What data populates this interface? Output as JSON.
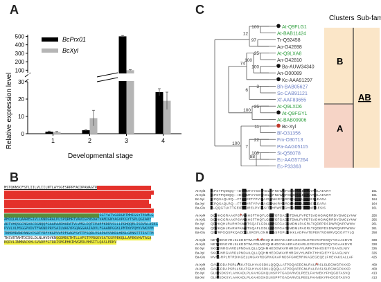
{
  "panels": {
    "a": "A",
    "b": "B",
    "c": "C",
    "d": "D"
  },
  "chart_data": {
    "type": "bar",
    "categories": [
      "1",
      "2",
      "3",
      "4"
    ],
    "series": [
      {
        "name": "BcPrx01",
        "values": [
          1.2,
          2.0,
          500,
          24
        ],
        "errors": [
          0.3,
          0.4,
          10,
          2
        ]
      },
      {
        "name": "BcXyl",
        "values": [
          1.0,
          9.0,
          100,
          19
        ],
        "errors": [
          0.3,
          4.5,
          6,
          5
        ]
      }
    ],
    "xlabel": "Developmental stage",
    "ylabel": "Relative expression level",
    "axis_break": [
      30,
      70
    ],
    "y_ticks_lower": [
      0,
      10,
      20,
      30
    ],
    "y_ticks_upper": [
      100,
      200,
      300,
      400,
      500
    ],
    "legend_position": "top-right",
    "colors": {
      "BcPrx01": "#000000",
      "BcXyl": "#b5b5b5"
    }
  },
  "tree": {
    "headers": {
      "clusters": "Clusters",
      "subfamilies": "Sub-families"
    },
    "cluster_b": "B",
    "cluster_a": "A",
    "subfamily": "AB",
    "leaves": [
      {
        "label": "At-Q9FLG1",
        "color": "#2e9e3e",
        "marker": "black-dot"
      },
      {
        "label": "At-BAB11424",
        "color": "#2e9e3e"
      },
      {
        "label": "Tr-Q92458",
        "color": "#333333"
      },
      {
        "label": "Ao-O42698",
        "color": "#333333"
      },
      {
        "label": "At-Q9LXA8",
        "color": "#2e9e3e"
      },
      {
        "label": "An-O42810",
        "color": "#333333"
      },
      {
        "label": "Ba-AUW34340",
        "color": "#333333",
        "marker": "black-dot"
      },
      {
        "label": "An-O00089",
        "color": "#333333"
      },
      {
        "label": "Kc-AAA91297",
        "color": "#333333",
        "marker": "black-dot"
      },
      {
        "label": "Bh-BAB05627",
        "color": "#6b7fc4"
      },
      {
        "label": "Sc-CAB91121",
        "color": "#6b7fc4"
      },
      {
        "label": "Xf-AAF83655",
        "color": "#6b7fc4"
      },
      {
        "label": "At-Q9LXD6",
        "color": "#2e9e3e"
      },
      {
        "label": "At-Q9FGY1",
        "color": "#2e9e3e",
        "marker": "black-dot"
      },
      {
        "label": "At-BAB09906",
        "color": "#2e9e3e"
      },
      {
        "label": "Bc-Xyl",
        "color": "#333333",
        "marker": "red-dot"
      },
      {
        "label": "Bf-O31356",
        "color": "#6b7fc4"
      },
      {
        "label": "Fm-O30713",
        "color": "#6b7fc4"
      },
      {
        "label": "Pa-AAG05115",
        "color": "#6b7fc4"
      },
      {
        "label": "St-Q56078",
        "color": "#6b7fc4"
      },
      {
        "label": "Ec-AAG57264",
        "color": "#6b7fc4"
      },
      {
        "label": "Ec-P33363",
        "color": "#6b7fc4"
      }
    ],
    "bootstraps": [
      "100",
      "97",
      "12",
      "25",
      "100",
      "100",
      "74",
      "3",
      "6",
      "25",
      "100",
      "11",
      "22",
      "100",
      "7",
      "88",
      "100"
    ]
  },
  "sequence": {
    "first_line": "MSTQKNSCFSTLIILVLIILNTLAYSGESRPPFACDPANAGTR",
    "lines": [
      "MSTQKNSCFSTLIILVLIILNTLAYSGESRPPFACDPANAGTRSFSFCDTRLSLRPRVDAALLSLSLS",
      "IEEKVGNLVNNAAGVPRLGIPKYEWWSEALHGVSNVGPGTHFSSLVPGATSFPQPILTAASFNGSLFNT",
      "IGRVVSDEARAMYNGGMAGLTYWSPNVNIFRDPRWGRGQETPGEDPLVISKYAVSYVKGLQGDTDKGH",
      "GHRRLRVVVNGKHFGGGSQADGGATLTLLFWHDGSEGHAGAYGGNSLIYQGRPQKPLSGRSEDPEKR",
      "SGNKVGWKGTEQVSEDTVNEYTERAFIAHTTVDCRGATERKYGMRQLGDPVSRSERFIGHRNVANAVP",
      "SDEPDHRSFCVCMYRHLPQWRNDPGVPNLPDRPTEKPLSVTEGVKVNDVQLKYNLFRGFVVSDCDSAVS",
      "DFGASLEAIAGFSGTHAGSCWTSTLVPEALKAGDLDLVGTTASFSGTYATVGRRGETMHIGSYTEAMLG",
      "AHQQLALQAAREGIVLLKNDGRALPLSPQRHRTVAVIGPNSDATVAMIGNYAGVPCGYTSPLQGIARY",
      "ARTVHQSGCNGVACRGNQQFGAAEAARHADATVLVMGLDQTIEAEFKDRVSLLLPGHQQELISRVALASKG",
      "PVVLVLMSGGPVDVTFAKNDPRVSAILWAGYPGQAGGAAIADVLFGAANPGGKLPMTWYPQHYVAKVPM",
      "TNMDMRANPANGYPGRTYRFYKGPVVFPFGAGFSYTTFSQRLVSAPAVSVKRLHDSLGENSTTTISTTM",
      "TKSVRTAHTDCDSLDLNLHVDVKNSGDMDGTHTLLVFSTPPRGKVSATGSPPEKQLLAFEKVHVTAGA",
      "KQRVLINMNACKHLSVADEFGTRRISMGEHKIHVGEDLMHSITLQASLEDKV"
    ]
  },
  "alignment": {
    "rows": [
      {
        "name": "At-Xyl4",
        "seq": "ISPSTPQMQQ---IDGLMTVYSGYAGLQPNKWQFGRDLAAETLAYNELAEVRT",
        "pos": "161"
      },
      {
        "name": "At-Xyl1",
        "seq": "ISPSTPQMQQ---IDGLMTVYSGYAGLQPNKWQFGRDLAAETLAYNELAEVRT",
        "pos": "161"
      },
      {
        "name": "Bc-Xyl",
        "seq": "IEPQSAQLRQ---FTGLVRTYPVIAAIGPNKIRYGRDLAGETLSYNEFLEARA",
        "pos": "164"
      },
      {
        "name": "Ba-Xyl",
        "seq": "IEPQSAQLRQ---FTGLVRTYPVIAAIGPNKIRYGRDLAGETLSYNEFLEARA",
        "pos": "164"
      },
      {
        "name": "Ba-Glu",
        "seq": "IA-QQGTLKTTGEIPGLIRELPVFASITPHRWEFGHSVAEETLAYNEIAESIS",
        "pos": "161"
      },
      {
        "name": "At-Xyl4",
        "seq": "DQYKGGRAAKPSYWNHSFTHQFLGRIVGFGADGTDMLPVPETSADHGWQRRDVGMGLYNW",
        "pos": "256"
      },
      {
        "name": "At-Xyl1",
        "seq": "DQYKGGRAAKPSYWNHSFTHQFLGRIVGFGADGTDMLPVPETSADHGWQRRDVGMGLYNW",
        "pos": "256"
      },
      {
        "name": "Bc-Xyl",
        "seq": "QDYKQHLRARHPAWDTSQAFLGDLLSVGFGAGSMDMLPAGRLTIQDEPDSDWRQNPFWWV",
        "pos": "261"
      },
      {
        "name": "Ba-Xyl",
        "seq": "QDYKQHLRARHPAWDTSQAFLGDLLSVGFGAGSMDMLPAGRLTIQDEPDSDWRQNPFWWV",
        "pos": "261"
      },
      {
        "name": "Ba-Glu",
        "seq": "QSYRPGQSPKQADDLLSRGFLGNMLSASFGPLGIKKLADPAATEPENTVDWRVQGGVTYLQ",
        "pos": "258"
      },
      {
        "name": "At-Xyl4",
        "seq": "NETGENGVRLSLKDDTWLPDLMGIQIMHDGYKAERAGKHRLEPEVRATEDQYYGAAKDVR",
        "pos": "328"
      },
      {
        "name": "At-Xyl1",
        "seq": "NETGENGVRLSLKDDTWLPDLMGIQIMHDGYKAERAGKHRLEPEVRATEDQYYGAAKDVR",
        "pos": "328"
      },
      {
        "name": "Bc-Xyl",
        "seq": "SKQGNRGIARDLPNDAILQLLQQHMHEDGWAVRHRGKVYLWPKTHHIGIEYYGAAGLNIV",
        "pos": "326"
      },
      {
        "name": "Ba-Xyl",
        "seq": "SKQGNRGIARDLPNDAILQLLQQHMHEDGWAVRHRGKVYLWPKTHHIGIEYYGAAGLNIV",
        "pos": "326"
      },
      {
        "name": "Ba-Glu",
        "seq": "MVNGRPLRTRDIKGELLMGAVRDGRKGKAPNDSFGMERRIKAGEGEQELFHEVAKSALLAF",
        "pos": "425"
      },
      {
        "name": "At-Xyl4",
        "seq": "GAVGDDAPSRLLSKATGLHVASSDKLQQQLLATPDQAEEGNLRALPASLSLEGWGFKKKD",
        "pos": "409"
      },
      {
        "name": "At-Xyl1",
        "seq": "GAVGDDAPSRLLSKATGLHVASSDKLQQQLLATPDQAEEGNLRALPASLSLEGWGFKKKD",
        "pos": "409"
      },
      {
        "name": "Bc-Xyl",
        "seq": "GLIGSDKSYLAHKADLPLKAHGGKQLNSPPTGADARVDLPEELFAHVEKYFHQGDTASVQ",
        "pos": "413"
      },
      {
        "name": "Ba-Xyl",
        "seq": "GLIGSDKSYLAHKADLPLKAHGGKQLNSPPTGADARVDLPEELFAHVEKYFHQGDTASVQ",
        "pos": "413"
      },
      {
        "name": "Ba-Glu",
        "seq": "RELGPGSEVQHVLAATVDTANRTPVRIGCGHLPLVSAAFCNLPDLTAFEQESFAAHAS",
        "pos": "440"
      }
    ]
  }
}
